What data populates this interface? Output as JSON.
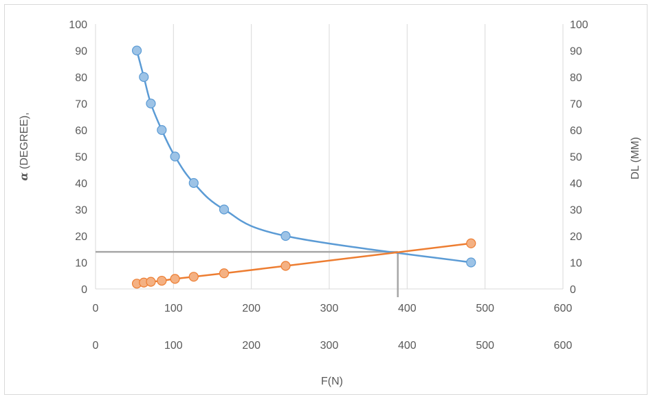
{
  "chart_data": {
    "type": "scatter",
    "title": "",
    "xlabel": "F(N)",
    "ylabel_left": "α (DEGREE),",
    "ylabel_left_symbol": "α",
    "ylabel_left_text": " (DEGREE),",
    "ylabel_right": "DL (MM)",
    "xlim": [
      0,
      600
    ],
    "ylim_left": [
      0,
      100
    ],
    "ylim_right": [
      0,
      100
    ],
    "x_ticks": [
      "0",
      "100",
      "200",
      "300",
      "400",
      "500",
      "600"
    ],
    "x_ticks_secondary": [
      "0",
      "100",
      "200",
      "300",
      "400",
      "500",
      "600"
    ],
    "y_ticks_left": [
      "0",
      "10",
      "20",
      "30",
      "40",
      "50",
      "60",
      "70",
      "80",
      "90",
      "100"
    ],
    "y_ticks_right": [
      "0",
      "10",
      "20",
      "30",
      "40",
      "50",
      "60",
      "70",
      "80",
      "90",
      "100"
    ],
    "grid": "vertical",
    "series": [
      {
        "color": "#5b9bd5",
        "marker_fill": "#9dc3e6",
        "axis": "left",
        "x": [
          53,
          62,
          71,
          85,
          102,
          126,
          165,
          244,
          482
        ],
        "y": [
          90,
          80,
          70,
          60,
          50,
          40,
          30,
          20,
          10
        ]
      },
      {
        "color": "#ed7d31",
        "marker_fill": "#f4b183",
        "axis": "right",
        "x": [
          53,
          62,
          71,
          85,
          102,
          126,
          165,
          244,
          482
        ],
        "y": [
          2.0,
          2.4,
          2.7,
          3.1,
          3.8,
          4.6,
          5.9,
          8.7,
          17.2
        ]
      }
    ],
    "reference_lines": {
      "color": "#a6a6a6",
      "horizontal_y": 14,
      "vertical_x": 388
    }
  }
}
